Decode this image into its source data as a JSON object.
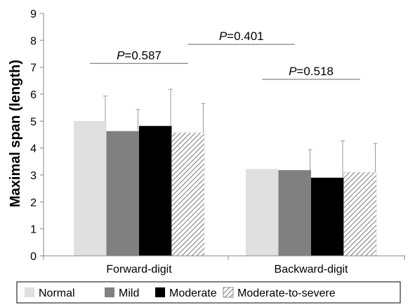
{
  "chart_data": {
    "type": "bar",
    "title": "",
    "xlabel": "",
    "ylabel": "Maximal span (length)",
    "ylim": [
      0,
      9
    ],
    "yticks": [
      0,
      1,
      2,
      3,
      4,
      5,
      6,
      7,
      8,
      9
    ],
    "ytick_labels": [
      "0",
      "1",
      "2",
      "3",
      "4",
      "5",
      "6",
      "7",
      "8",
      "9"
    ],
    "grid": false,
    "legend_position": "bottom",
    "categories": [
      "Forward-digit",
      "Backward-digit"
    ],
    "series": [
      {
        "name": "Normal",
        "values": [
          5.0,
          3.22
        ],
        "errors": [
          0.93,
          0.0
        ],
        "color": "#e0e0e0",
        "pattern": "solid"
      },
      {
        "name": "Mild",
        "values": [
          4.63,
          3.18
        ],
        "errors": [
          0.8,
          0.76
        ],
        "color": "#808080",
        "pattern": "solid"
      },
      {
        "name": "Moderate",
        "values": [
          4.82,
          2.9
        ],
        "errors": [
          1.36,
          1.37
        ],
        "color": "#000000",
        "pattern": "solid"
      },
      {
        "name": "Moderate-to-severe",
        "values": [
          4.57,
          3.1
        ],
        "errors": [
          1.08,
          1.07
        ],
        "color": "#ffffff",
        "pattern": "hatch"
      }
    ],
    "annotations": [
      {
        "label_italic": "P",
        "label_rest": "=0.587",
        "y_line": 7.14,
        "from": {
          "category": 0,
          "series": 0
        },
        "to": {
          "category": 0,
          "series": 3
        }
      },
      {
        "label_italic": "P",
        "label_rest": "=0.518",
        "y_line": 6.55,
        "from": {
          "category": 1,
          "series": 0
        },
        "to": {
          "category": 1,
          "series": 3
        }
      },
      {
        "label_italic": "P",
        "label_rest": "=0.401",
        "y_line": 7.85,
        "from": {
          "category": 0,
          "series": 3
        },
        "to": {
          "category": 1,
          "series": 1
        }
      }
    ]
  }
}
